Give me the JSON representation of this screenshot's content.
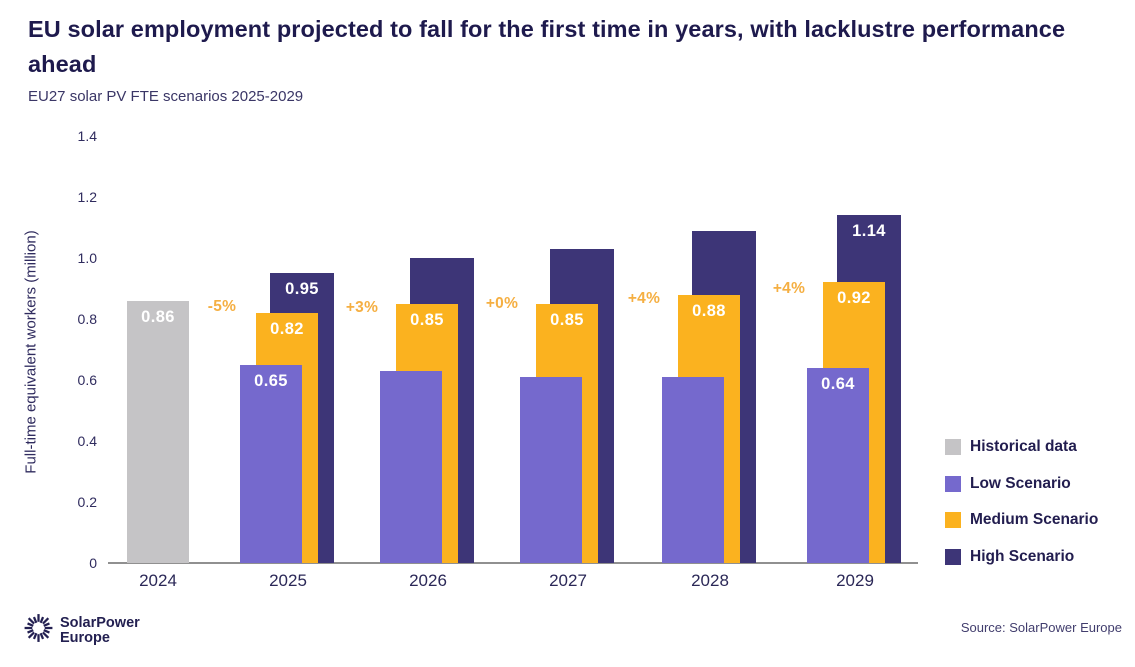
{
  "header": {
    "title": "EU solar employment projected to fall for the first time in years, with lacklustre performance ahead",
    "subtitle": "EU27 solar PV FTE scenarios 2025-2029"
  },
  "chart_data": {
    "type": "bar",
    "title": "EU solar employment projected to fall for the first time in years, with lacklustre performance ahead",
    "subtitle": "EU27 solar PV FTE scenarios 2025-2029",
    "xlabel": "",
    "ylabel": "Full-time equivalent workers (million)",
    "ylim": [
      0,
      1.4
    ],
    "yticks": [
      {
        "value": 0,
        "label": "0"
      },
      {
        "value": 0.2,
        "label": "0.2"
      },
      {
        "value": 0.4,
        "label": "0.4"
      },
      {
        "value": 0.6,
        "label": "0.6"
      },
      {
        "value": 0.8,
        "label": "0.8"
      },
      {
        "value": 1.0,
        "label": "1.0"
      },
      {
        "value": 1.2,
        "label": "1.2"
      },
      {
        "value": 1.4,
        "label": "1.4"
      }
    ],
    "grid": false,
    "legend_position": "right",
    "categories": [
      "2024",
      "2025",
      "2026",
      "2027",
      "2028",
      "2029"
    ],
    "series": [
      {
        "name": "Historical data",
        "role": "historical",
        "color": "#c5c4c6",
        "values": [
          0.86,
          null,
          null,
          null,
          null,
          null
        ],
        "labels": [
          "0.86",
          null,
          null,
          null,
          null,
          null
        ]
      },
      {
        "name": "Low Scenario",
        "role": "low",
        "color": "#7569cd",
        "values": [
          null,
          0.65,
          0.63,
          0.61,
          0.61,
          0.64
        ],
        "labels": [
          null,
          "0.65",
          null,
          null,
          null,
          "0.64"
        ]
      },
      {
        "name": "Medium Scenario",
        "role": "medium",
        "color": "#fbb21f",
        "values": [
          null,
          0.82,
          0.85,
          0.85,
          0.88,
          0.92
        ],
        "labels": [
          null,
          "0.82",
          "0.85",
          "0.85",
          "0.88",
          "0.92"
        ]
      },
      {
        "name": "High Scenario",
        "role": "high",
        "color": "#3d3577",
        "values": [
          null,
          0.95,
          1.0,
          1.03,
          1.09,
          1.14
        ],
        "labels": [
          null,
          "0.95",
          null,
          null,
          null,
          "1.14"
        ]
      }
    ],
    "annotations": [
      {
        "label": "-5%",
        "from": "2024",
        "to": "2025"
      },
      {
        "label": "+3%",
        "from": "2025",
        "to": "2026"
      },
      {
        "label": "+0%",
        "from": "2026",
        "to": "2027"
      },
      {
        "label": "+4%",
        "from": "2027",
        "to": "2028"
      },
      {
        "label": "+4%",
        "from": "2028",
        "to": "2029"
      }
    ],
    "annotation_color": "#f5af42"
  },
  "legend": {
    "items": [
      "Historical data",
      "Low Scenario",
      "Medium Scenario",
      "High Scenario"
    ]
  },
  "footer": {
    "logo_line1": "SolarPower",
    "logo_line2": "Europe",
    "source": "Source: SolarPower Europe"
  },
  "colors": {
    "title_text": "#1e1a4d",
    "axis_text": "#2f2b5e",
    "axis_line": "#909090",
    "historical": "#c5c4c6",
    "low": "#7569cd",
    "medium": "#fbb21f",
    "high": "#3d3577",
    "annotation": "#f5af42",
    "bar_value_text": "#ffffff"
  }
}
